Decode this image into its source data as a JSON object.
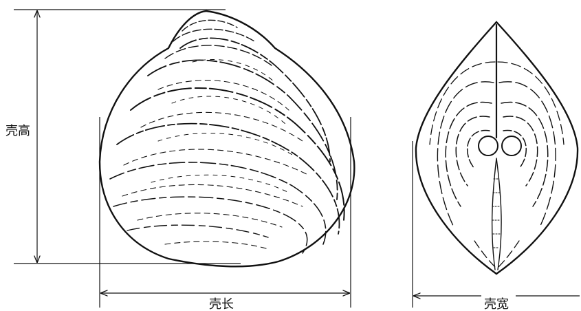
{
  "labels": {
    "height": "壳高",
    "length": "壳长",
    "width": "壳宽"
  },
  "colors": {
    "ink": "#111111",
    "background": "#ffffff"
  }
}
